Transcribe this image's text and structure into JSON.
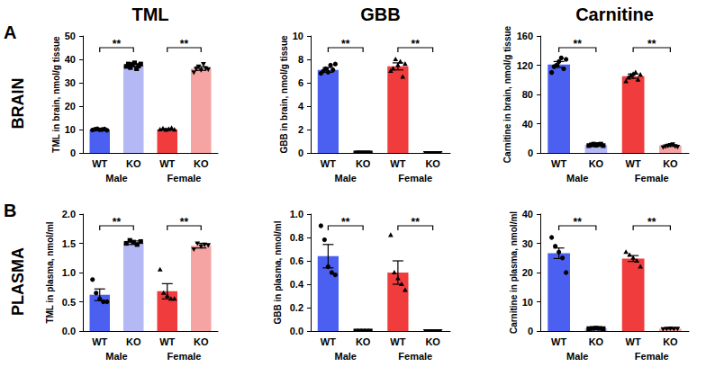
{
  "figure": {
    "columns": [
      "TML",
      "GBB",
      "Carnitine"
    ],
    "rows": [
      {
        "panel": "A",
        "label": "BRAIN"
      },
      {
        "panel": "B",
        "label": "PLASMA"
      }
    ]
  },
  "chart_data": [
    {
      "type": "bar",
      "y_label": "TML in brain, nmol/g tissue",
      "categories": [
        "WT",
        "KO",
        "WT",
        "KO"
      ],
      "group_labels": [
        "Male",
        "Female"
      ],
      "values": [
        10.0,
        37.5,
        10.1,
        36.1
      ],
      "errors": [
        0.3,
        0.6,
        0.3,
        0.8
      ],
      "points": [
        [
          9.8,
          10.1,
          10.3,
          9.9,
          10.0,
          10.2,
          9.7
        ],
        [
          37,
          38,
          36.5,
          37.8,
          38.5,
          36,
          37.2,
          38
        ],
        [
          10,
          10.4,
          9.8,
          10.1,
          10.6,
          9.9
        ],
        [
          34.5,
          36,
          37,
          35.5,
          38,
          36.2,
          35.8
        ]
      ],
      "markers": [
        "circle",
        "square",
        "triangle",
        "triangle-down"
      ],
      "colors": [
        "#4b5ff0",
        "#b4b8f5",
        "#f03c3c",
        "#f5a3a3"
      ],
      "significance": [
        {
          "from": 0,
          "to": 1,
          "label": "**"
        },
        {
          "from": 2,
          "to": 3,
          "label": "**"
        }
      ],
      "ylim": [
        0,
        50
      ],
      "yticks": [
        0,
        10,
        20,
        30,
        40,
        50
      ],
      "grid": false
    },
    {
      "type": "bar",
      "y_label": "GBB in brain, nmol/g tissue",
      "categories": [
        "WT",
        "KO",
        "WT",
        "KO"
      ],
      "group_labels": [
        "Male",
        "Female"
      ],
      "values": [
        7.1,
        0.03,
        7.4,
        0.03
      ],
      "errors": [
        0.2,
        0.02,
        0.3,
        0.02
      ],
      "points": [
        [
          6.8,
          7.0,
          7.2,
          6.9,
          7.5,
          7.1,
          7.6
        ],
        [
          0,
          0,
          0,
          0,
          0,
          0,
          0
        ],
        [
          7.0,
          7.2,
          8.0,
          7.5,
          7.8,
          6.5,
          7.6
        ],
        [
          0,
          0,
          0,
          0,
          0,
          0
        ]
      ],
      "markers": [
        "circle",
        "square",
        "triangle",
        "triangle-down"
      ],
      "colors": [
        "#4b5ff0",
        "#b4b8f5",
        "#f03c3c",
        "#f5a3a3"
      ],
      "significance": [
        {
          "from": 0,
          "to": 1,
          "label": "**"
        },
        {
          "from": 2,
          "to": 3,
          "label": "**"
        }
      ],
      "ylim": [
        0,
        10
      ],
      "yticks": [
        0,
        2,
        4,
        6,
        8,
        10
      ],
      "grid": false
    },
    {
      "type": "bar",
      "y_label": "Carnitine in brain, nmol/g tissue",
      "categories": [
        "WT",
        "KO",
        "WT",
        "KO"
      ],
      "group_labels": [
        "Male",
        "Female"
      ],
      "values": [
        121,
        11,
        105,
        10
      ],
      "errors": [
        4,
        0.7,
        3,
        1
      ],
      "points": [
        [
          110,
          118,
          120,
          125,
          130,
          115,
          128
        ],
        [
          10,
          11,
          12,
          10.5,
          11.5,
          12,
          10
        ],
        [
          98,
          103,
          106,
          108,
          110,
          100,
          107
        ],
        [
          8,
          9,
          10,
          11,
          12,
          9.5,
          8.5
        ]
      ],
      "markers": [
        "circle",
        "square",
        "triangle",
        "triangle-down"
      ],
      "colors": [
        "#4b5ff0",
        "#b4b8f5",
        "#f03c3c",
        "#f5a3a3"
      ],
      "significance": [
        {
          "from": 0,
          "to": 1,
          "label": "**"
        },
        {
          "from": 2,
          "to": 3,
          "label": "**"
        }
      ],
      "ylim": [
        0,
        160
      ],
      "yticks": [
        0,
        40,
        80,
        120,
        160
      ],
      "grid": false
    },
    {
      "type": "bar",
      "y_label": "TML in plasma, nmol/ml",
      "categories": [
        "WT",
        "KO",
        "WT",
        "KO"
      ],
      "group_labels": [
        "Male",
        "Female"
      ],
      "values": [
        0.62,
        1.51,
        0.68,
        1.46
      ],
      "errors": [
        0.1,
        0.03,
        0.13,
        0.04
      ],
      "points": [
        [
          0.88,
          0.65,
          0.55,
          0.5,
          0.5
        ],
        [
          1.5,
          1.55,
          1.52,
          1.48,
          1.53
        ],
        [
          1.05,
          0.65,
          0.6,
          0.55,
          0.55
        ],
        [
          1.4,
          1.5,
          1.45,
          1.48,
          1.47
        ]
      ],
      "markers": [
        "circle",
        "square",
        "triangle",
        "triangle-down"
      ],
      "colors": [
        "#4b5ff0",
        "#b4b8f5",
        "#f03c3c",
        "#f5a3a3"
      ],
      "significance": [
        {
          "from": 0,
          "to": 1,
          "label": "**"
        },
        {
          "from": 2,
          "to": 3,
          "label": "**"
        }
      ],
      "ylim": [
        0,
        2
      ],
      "yticks": [
        {
          "value": 0,
          "label": "0.0"
        },
        0.5,
        {
          "value": 1,
          "label": "1.0"
        },
        1.5,
        {
          "value": 2,
          "label": "2.0"
        }
      ],
      "grid": false
    },
    {
      "type": "bar",
      "y_label": "GBB in plasma, nmol/ml",
      "categories": [
        "WT",
        "KO",
        "WT",
        "KO"
      ],
      "group_labels": [
        "Male",
        "Female"
      ],
      "values": [
        0.64,
        0,
        0.5,
        0
      ],
      "errors": [
        0.1,
        0,
        0.1,
        0
      ],
      "points": [
        [
          0.9,
          0.78,
          0.55,
          0.5,
          0.48
        ],
        [
          0,
          0,
          0,
          0,
          0
        ],
        [
          0.82,
          0.5,
          0.45,
          0.4,
          0.35
        ],
        [
          0,
          0,
          0,
          0,
          0
        ]
      ],
      "markers": [
        "circle",
        "square",
        "triangle",
        "triangle-down"
      ],
      "colors": [
        "#4b5ff0",
        "#b4b8f5",
        "#f03c3c",
        "#f5a3a3"
      ],
      "significance": [
        {
          "from": 0,
          "to": 1,
          "label": "**"
        },
        {
          "from": 2,
          "to": 3,
          "label": "**"
        }
      ],
      "ylim": [
        0,
        1
      ],
      "yticks": [
        {
          "value": 0,
          "label": "0.0"
        },
        0.2,
        0.4,
        0.6,
        0.8,
        {
          "value": 1,
          "label": "1.0"
        }
      ],
      "grid": false
    },
    {
      "type": "bar",
      "y_label": "Carnitine in plasma, nmol/ml",
      "categories": [
        "WT",
        "KO",
        "WT",
        "KO"
      ],
      "group_labels": [
        "Male",
        "Female"
      ],
      "values": [
        26.6,
        0.9,
        24.8,
        0.8
      ],
      "errors": [
        1.8,
        0.1,
        1,
        0.1
      ],
      "points": [
        [
          32,
          29,
          27,
          25,
          20
        ],
        [
          0.8,
          0.9,
          1.0,
          0.9,
          0.8
        ],
        [
          27,
          26,
          25,
          24,
          22
        ],
        [
          0.7,
          0.8,
          0.9,
          0.8,
          0.8
        ]
      ],
      "markers": [
        "circle",
        "square",
        "triangle",
        "triangle-down"
      ],
      "colors": [
        "#4b5ff0",
        "#b4b8f5",
        "#f03c3c",
        "#f5a3a3"
      ],
      "significance": [
        {
          "from": 0,
          "to": 1,
          "label": "**"
        },
        {
          "from": 2,
          "to": 3,
          "label": "**"
        }
      ],
      "ylim": [
        0,
        40
      ],
      "yticks": [
        0,
        10,
        20,
        30,
        40
      ],
      "grid": false
    }
  ]
}
